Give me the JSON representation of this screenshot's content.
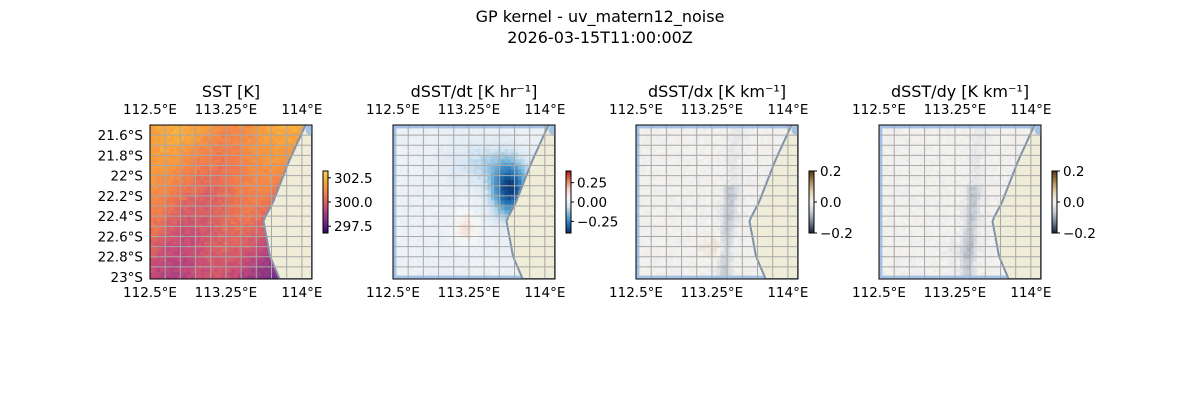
{
  "figure": {
    "title_line1": "GP kernel - uv_matern12_noise",
    "title_line2": "2026-03-15T11:00:00Z"
  },
  "colors": {
    "grid": "#a8a8a8",
    "land": "#efecd8",
    "coast": "#7f93a8",
    "no_data": "#a3c1e6"
  },
  "chart_data": [
    {
      "type": "heatmap",
      "title": "SST [K]",
      "x_ticks": [
        "112.5°E",
        "113.25°E",
        "114°E"
      ],
      "y_ticks": [
        "21.6°S",
        "21.8°S",
        "22°S",
        "22.2°S",
        "22.4°S",
        "22.6°S",
        "22.8°S",
        "23°S"
      ],
      "x_tick_values": [
        112.5,
        113.25,
        114.0
      ],
      "y_tick_values": [
        -21.6,
        -21.8,
        -22.0,
        -22.2,
        -22.4,
        -22.6,
        -22.8,
        -23.0
      ],
      "xlim": [
        112.5,
        114.1
      ],
      "ylim": [
        -23.02,
        -21.5
      ],
      "colormap": "plasma-like",
      "colorbar": {
        "ticks": [
          "302.5",
          "300.0",
          "297.5"
        ],
        "tick_values": [
          302.5,
          300.0,
          297.5
        ],
        "range": [
          296.8,
          303.2
        ]
      },
      "grid": true,
      "y_labels_left": true
    },
    {
      "type": "heatmap",
      "title": "dSST/dt [K hr⁻¹]",
      "x_ticks": [
        "112.5°E",
        "113.25°E",
        "114°E"
      ],
      "x_tick_values": [
        112.5,
        113.25,
        114.0
      ],
      "xlim": [
        112.5,
        114.1
      ],
      "ylim": [
        -23.02,
        -21.5
      ],
      "colormap": "blue-white-red diverging",
      "colorbar": {
        "ticks": [
          "0.25",
          "0.00",
          "−0.25"
        ],
        "tick_values": [
          0.25,
          0.0,
          -0.25
        ],
        "range": [
          -0.4,
          0.4
        ]
      },
      "grid": true,
      "y_labels_left": false
    },
    {
      "type": "heatmap",
      "title": "dSST/dx [K km⁻¹]",
      "x_ticks": [
        "112.5°E",
        "113.25°E",
        "114°E"
      ],
      "x_tick_values": [
        112.5,
        113.25,
        114.0
      ],
      "xlim": [
        112.5,
        114.1
      ],
      "ylim": [
        -23.02,
        -21.5
      ],
      "colormap": "diverging grey-brown",
      "colorbar": {
        "ticks": [
          "0.2",
          "0.0",
          "−0.2"
        ],
        "tick_values": [
          0.2,
          0.0,
          -0.2
        ],
        "range": [
          -0.2,
          0.2
        ]
      },
      "grid": true,
      "y_labels_left": false
    },
    {
      "type": "heatmap",
      "title": "dSST/dy [K km⁻¹]",
      "x_ticks": [
        "112.5°E",
        "113.25°E",
        "114°E"
      ],
      "x_tick_values": [
        112.5,
        113.25,
        114.0
      ],
      "xlim": [
        112.5,
        114.1
      ],
      "ylim": [
        -23.02,
        -21.5
      ],
      "colormap": "diverging grey-brown",
      "colorbar": {
        "ticks": [
          "0.2",
          "0.0",
          "−0.2"
        ],
        "tick_values": [
          0.2,
          0.0,
          -0.2
        ],
        "range": [
          -0.2,
          0.2
        ]
      },
      "grid": true,
      "y_labels_left": false
    }
  ]
}
